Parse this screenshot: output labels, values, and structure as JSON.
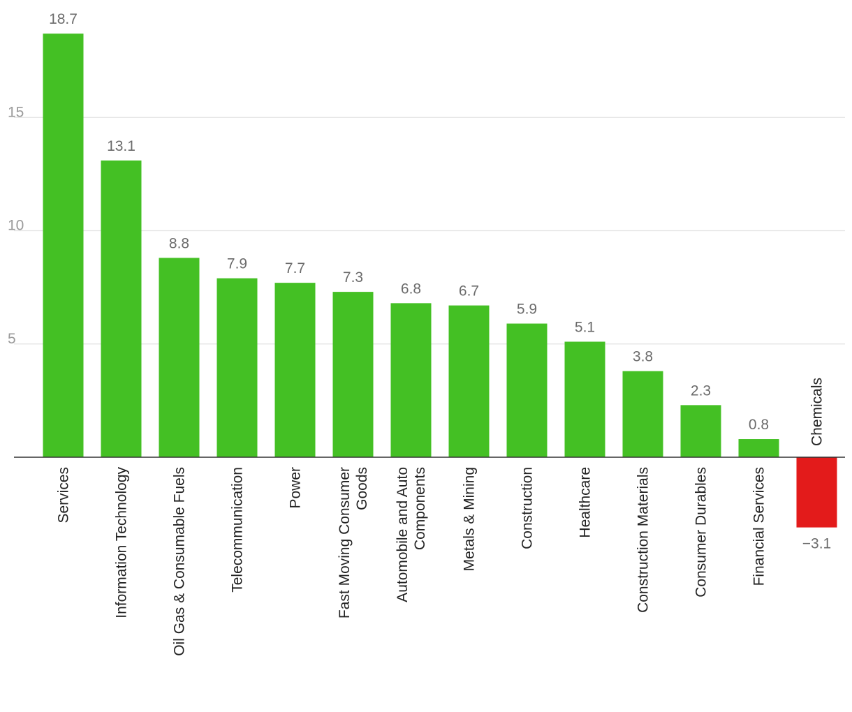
{
  "chart_data": {
    "type": "bar",
    "categories": [
      "Services",
      "Information Technology",
      "Oil Gas & Consumable Fuels",
      "Telecommunication",
      "Power",
      "Fast Moving Consumer Goods",
      "Automobile and Auto Components",
      "Metals & Mining",
      "Construction",
      "Healthcare",
      "Construction Materials",
      "Consumer Durables",
      "Financial Services",
      "Chemicals"
    ],
    "category_label_lines": [
      [
        "Services"
      ],
      [
        "Information Technology"
      ],
      [
        "Oil Gas & Consumable Fuels"
      ],
      [
        "Telecommunication"
      ],
      [
        "Power"
      ],
      [
        "Fast Moving Consumer",
        "Goods"
      ],
      [
        "Automobile and Auto",
        "Components"
      ],
      [
        "Metals & Mining"
      ],
      [
        "Construction"
      ],
      [
        "Healthcare"
      ],
      [
        "Construction Materials"
      ],
      [
        "Consumer Durables"
      ],
      [
        "Financial Services"
      ],
      [
        "Chemicals"
      ]
    ],
    "values": [
      18.7,
      13.1,
      8.8,
      7.9,
      7.7,
      7.3,
      6.8,
      6.7,
      5.9,
      5.1,
      3.8,
      2.3,
      0.8,
      -3.1
    ],
    "value_labels": [
      "18.7",
      "13.1",
      "8.8",
      "7.9",
      "7.7",
      "7.3",
      "6.8",
      "6.7",
      "5.9",
      "5.1",
      "3.8",
      "2.3",
      "0.8",
      "−3.1"
    ],
    "yticks": [
      5,
      10,
      15
    ],
    "ytick_labels": [
      "5",
      "10",
      "15"
    ],
    "ylim": [
      -3.1,
      18.7
    ],
    "grid": true,
    "legend": "none",
    "colors": {
      "positive": "#44c024",
      "negative": "#e31b1b"
    }
  }
}
